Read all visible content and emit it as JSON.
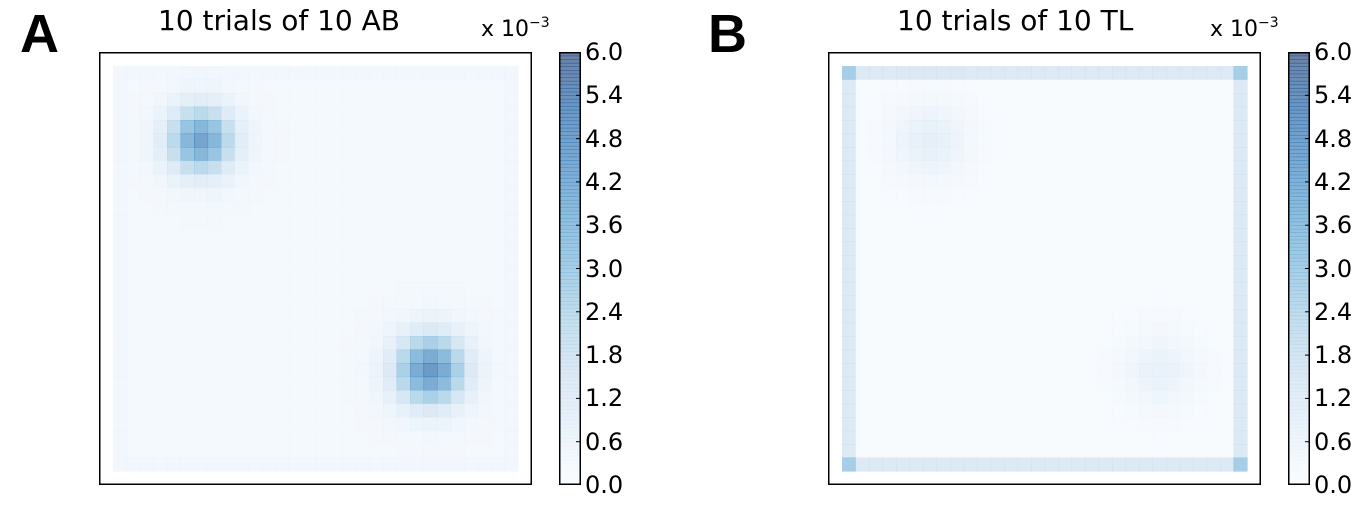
{
  "chart_data": [
    {
      "type": "heatmap",
      "panel_label": "A",
      "title": "10 trials of 10 AB",
      "colorbar": {
        "exponent_label": "x 10",
        "exponent": "−3",
        "range": [
          0.0,
          6.0
        ],
        "ticks": [
          "0.0",
          "0.6",
          "1.2",
          "1.8",
          "2.4",
          "3.0",
          "3.6",
          "4.2",
          "4.8",
          "5.4",
          "6.0"
        ],
        "colormap": [
          "#f7fbff",
          "#deebf7",
          "#c6dbef",
          "#9ecae1",
          "#6baed6",
          "#4292c6",
          "#2171b5",
          "#08519c",
          "#08306b"
        ]
      },
      "grid": {
        "rows": 30,
        "cols": 30,
        "alpha": 0.6
      },
      "field": {
        "base": 0.3,
        "border_extra": 0.15,
        "hotspots": [
          {
            "row": 5,
            "col": 6,
            "peak": 4.4,
            "sigma": 1.7
          },
          {
            "row": 22,
            "col": 23,
            "peak": 4.8,
            "sigma": 1.8
          }
        ]
      },
      "xlabel": "",
      "ylabel": ""
    },
    {
      "type": "heatmap",
      "panel_label": "B",
      "title": "10 trials of 10 TL",
      "colorbar": {
        "exponent_label": "x 10",
        "exponent": "−3",
        "range": [
          0.0,
          6.0
        ],
        "ticks": [
          "0.0",
          "0.6",
          "1.2",
          "1.8",
          "2.4",
          "3.0",
          "3.6",
          "4.2",
          "4.8",
          "5.4",
          "6.0"
        ],
        "colormap": [
          "#f7fbff",
          "#deebf7",
          "#c6dbef",
          "#9ecae1",
          "#6baed6",
          "#4292c6",
          "#2171b5",
          "#08519c",
          "#08306b"
        ]
      },
      "grid": {
        "rows": 30,
        "cols": 30,
        "alpha": 0.6
      },
      "field": {
        "base": 0.15,
        "border_value": 1.5,
        "corner_value": 3.0,
        "hotspots": [
          {
            "row": 5,
            "col": 6,
            "peak": 0.9,
            "sigma": 1.8
          },
          {
            "row": 22,
            "col": 23,
            "peak": 0.7,
            "sigma": 1.8
          }
        ]
      },
      "xlabel": "",
      "ylabel": ""
    }
  ]
}
